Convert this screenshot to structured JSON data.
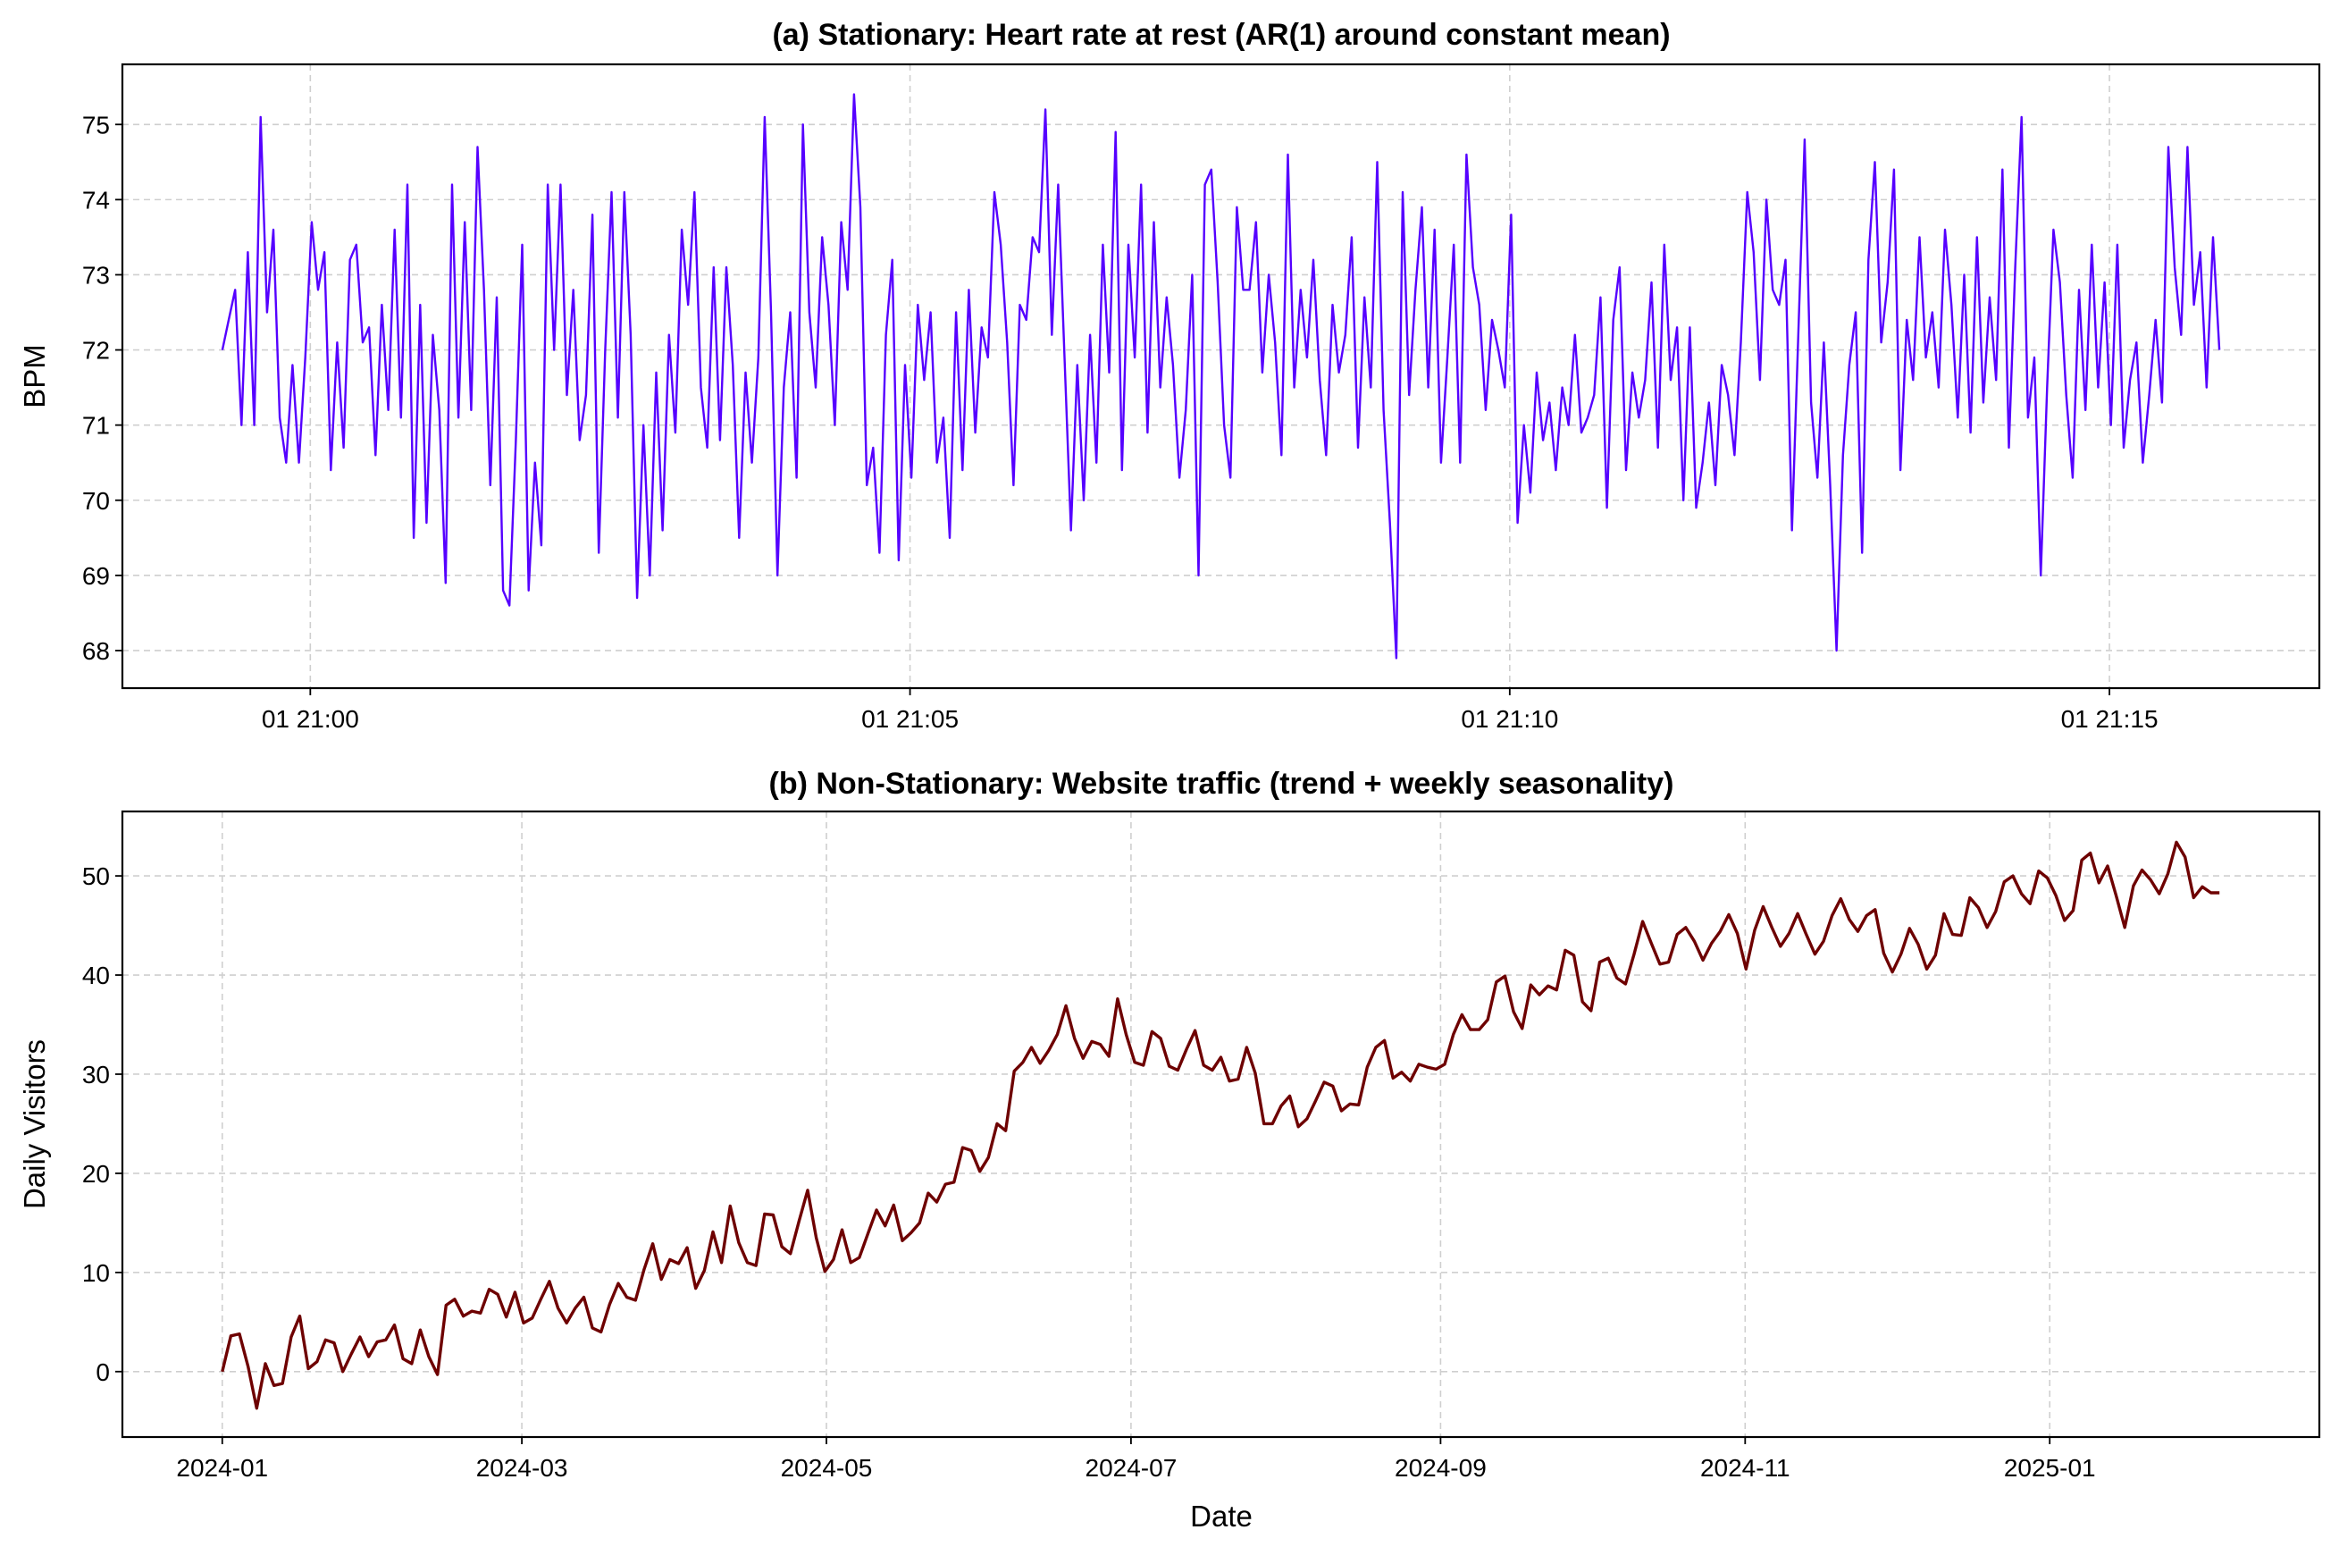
{
  "chart_data": [
    {
      "type": "line",
      "title": "(a) Stationary: Heart rate at rest (AR(1) around constant mean)",
      "xlabel": "",
      "ylabel": "BPM",
      "x_unit": "seconds since 20:59:16",
      "x_start": 0,
      "x_end": 999,
      "xlim": [
        -50,
        1049
      ],
      "ylim": [
        67.5,
        75.8
      ],
      "grid": true,
      "color": "#5500ff",
      "x_ticks": [
        {
          "value": 44,
          "label": "01 21:00"
        },
        {
          "value": 344,
          "label": "01 21:05"
        },
        {
          "value": 644,
          "label": "01 21:10"
        },
        {
          "value": 944,
          "label": "01 21:15"
        }
      ],
      "y_ticks": [
        {
          "value": 68,
          "label": "68"
        },
        {
          "value": 69,
          "label": "69"
        },
        {
          "value": 70,
          "label": "70"
        },
        {
          "value": 71,
          "label": "71"
        },
        {
          "value": 72,
          "label": "72"
        },
        {
          "value": 73,
          "label": "73"
        },
        {
          "value": 74,
          "label": "74"
        },
        {
          "value": 75,
          "label": "75"
        }
      ],
      "values": [
        72,
        72.4,
        72.8,
        71,
        73.3,
        71,
        75.1,
        72.5,
        73.6,
        71.1,
        70.5,
        71.8,
        70.5,
        71.9,
        73.7,
        72.8,
        73.3,
        70.4,
        72.1,
        70.7,
        73.2,
        73.4,
        72.1,
        72.3,
        70.6,
        72.6,
        71.2,
        73.6,
        71.1,
        74.2,
        69.5,
        72.6,
        69.7,
        72.2,
        71.2,
        68.9,
        74.2,
        71.1,
        73.7,
        71.2,
        74.7,
        72.8,
        70.2,
        72.7,
        68.8,
        68.6,
        70.8,
        73.4,
        68.8,
        70.5,
        69.4,
        74.2,
        72,
        74.2,
        71.4,
        72.8,
        70.8,
        71.4,
        73.8,
        69.3,
        72,
        74.1,
        71.1,
        74.1,
        72.2,
        68.7,
        71,
        69,
        71.7,
        69.6,
        72.2,
        70.9,
        73.6,
        72.6,
        74.1,
        71.5,
        70.7,
        73.1,
        70.8,
        73.1,
        71.8,
        69.5,
        71.7,
        70.5,
        71.9,
        75.1,
        72.5,
        69,
        71.5,
        72.5,
        70.3,
        75,
        72.5,
        71.5,
        73.5,
        72.6,
        71,
        73.7,
        72.8,
        75.4,
        73.9,
        70.2,
        70.7,
        69.3,
        72.2,
        73.2,
        69.2,
        71.8,
        70.3,
        72.6,
        71.6,
        72.5,
        70.5,
        71.1,
        69.5,
        72.5,
        70.4,
        72.8,
        70.9,
        72.3,
        71.9,
        74.1,
        73.4,
        72.1,
        70.2,
        72.6,
        72.4,
        73.5,
        73.3,
        75.2,
        72.2,
        74.2,
        71.9,
        69.6,
        71.8,
        70,
        72.2,
        70.5,
        73.4,
        71.7,
        74.9,
        70.4,
        73.4,
        71.9,
        74.2,
        70.9,
        73.7,
        71.5,
        72.7,
        71.8,
        70.3,
        71.2,
        73,
        69,
        74.2,
        74.4,
        72.9,
        71,
        70.3,
        73.9,
        72.8,
        72.8,
        73.7,
        71.7,
        73,
        72.1,
        70.6,
        74.6,
        71.5,
        72.8,
        71.9,
        73.2,
        71.6,
        70.6,
        72.6,
        71.7,
        72.2,
        73.5,
        70.7,
        72.7,
        71.5,
        74.5,
        71.2,
        69.7,
        67.9,
        74.1,
        71.4,
        72.8,
        73.9,
        71.5,
        73.6,
        70.5,
        71.9,
        73.4,
        70.5,
        74.6,
        73.1,
        72.6,
        71.2,
        72.4,
        72,
        71.5,
        73.8,
        69.7,
        71,
        70.1,
        71.7,
        70.8,
        71.3,
        70.4,
        71.5,
        71,
        72.2,
        70.9,
        71.1,
        71.4,
        72.7,
        69.9,
        72.4,
        73.1,
        70.4,
        71.7,
        71.1,
        71.6,
        72.9,
        70.7,
        73.4,
        71.6,
        72.3,
        70,
        72.3,
        69.9,
        70.5,
        71.3,
        70.2,
        71.8,
        71.4,
        70.6,
        72.1,
        74.1,
        73.3,
        71.6,
        74,
        72.8,
        72.6,
        73.2,
        69.6,
        72.2,
        74.8,
        71.3,
        70.3,
        72.1,
        70.2,
        68,
        70.6,
        71.8,
        72.5,
        69.3,
        73.2,
        74.5,
        72.1,
        72.9,
        74.4,
        70.4,
        72.4,
        71.6,
        73.5,
        71.9,
        72.5,
        71.5,
        73.6,
        72.6,
        71.1,
        73,
        70.9,
        73.5,
        71.3,
        72.7,
        71.6,
        74.4,
        70.7,
        73.1,
        75.1,
        71.1,
        71.9,
        69,
        71.5,
        73.6,
        72.9,
        71.4,
        70.3,
        72.8,
        71.2,
        73.4,
        71.5,
        72.9,
        71,
        73.4,
        70.7,
        71.6,
        72.1,
        70.5,
        71.4,
        72.4,
        71.3,
        74.7,
        73.1,
        72.2,
        74.7,
        72.6,
        73.3,
        71.5,
        73.5,
        72
      ]
    },
    {
      "type": "line",
      "title": "(b) Non-Stationary: Website traffic (trend + weekly seasonality)",
      "xlabel": "Date",
      "ylabel": "Daily Visitors",
      "x_unit": "days since 2024-01-01",
      "x_start": 0,
      "x_end": 400,
      "xlim": [
        -20,
        420
      ],
      "ylim": [
        -6.6,
        56.5
      ],
      "grid": true,
      "color": "#6e0000",
      "x_ticks": [
        {
          "value": 0,
          "label": "2024-01"
        },
        {
          "value": 60,
          "label": "2024-03"
        },
        {
          "value": 121,
          "label": "2024-05"
        },
        {
          "value": 182,
          "label": "2024-07"
        },
        {
          "value": 244,
          "label": "2024-09"
        },
        {
          "value": 305,
          "label": "2024-11"
        },
        {
          "value": 366,
          "label": "2025-01"
        }
      ],
      "y_ticks": [
        {
          "value": 0,
          "label": "0"
        },
        {
          "value": 10,
          "label": "10"
        },
        {
          "value": 20,
          "label": "20"
        },
        {
          "value": 30,
          "label": "30"
        },
        {
          "value": 40,
          "label": "40"
        },
        {
          "value": 50,
          "label": "50"
        }
      ],
      "values": [
        0,
        3.6,
        3.8,
        0.5,
        -3.7,
        0.8,
        -1.4,
        -1.2,
        3.5,
        5.6,
        0.3,
        1,
        3.2,
        2.9,
        0,
        1.8,
        3.5,
        1.5,
        3,
        3.2,
        4.7,
        1.3,
        0.8,
        4.2,
        1.5,
        -0.3,
        6.7,
        7.3,
        5.6,
        6.1,
        5.9,
        8.3,
        7.8,
        5.5,
        8,
        4.9,
        5.4,
        7.3,
        9.1,
        6.4,
        4.9,
        6.4,
        7.5,
        4.4,
        4,
        6.8,
        8.9,
        7.5,
        7.2,
        10.3,
        12.9,
        9.3,
        11.3,
        10.9,
        12.5,
        8.4,
        10.2,
        14.1,
        11,
        16.7,
        13,
        11,
        10.7,
        15.9,
        15.8,
        12.6,
        11.9,
        15.2,
        18.3,
        13.5,
        10.1,
        11.3,
        14.3,
        11,
        11.5,
        13.9,
        16.3,
        14.7,
        16.8,
        13.2,
        14,
        15,
        18,
        17.1,
        18.9,
        19.1,
        22.6,
        22.3,
        20.2,
        21.6,
        25,
        24.3,
        30.3,
        31.2,
        32.7,
        31.1,
        32.4,
        34,
        36.9,
        33.6,
        31.6,
        33.3,
        33,
        31.8,
        37.6,
        34,
        31.2,
        30.9,
        34.3,
        33.6,
        30.8,
        30.4,
        32.5,
        34.4,
        30.9,
        30.4,
        31.7,
        29.3,
        29.5,
        32.7,
        30.1,
        25,
        25,
        26.8,
        27.8,
        24.7,
        25.5,
        27.3,
        29.2,
        28.8,
        26.3,
        27,
        26.9,
        30.7,
        32.7,
        33.4,
        29.6,
        30.2,
        29.3,
        31,
        30.7,
        30.5,
        31,
        34,
        36,
        34.5,
        34.5,
        35.5,
        39.3,
        39.9,
        36.3,
        34.6,
        39,
        38,
        38.9,
        38.5,
        42.5,
        42,
        37.3,
        36.4,
        41.3,
        41.7,
        39.7,
        39.1,
        42.1,
        45.4,
        43.2,
        41.1,
        41.3,
        44.1,
        44.8,
        43.4,
        41.5,
        43.2,
        44.4,
        46.1,
        44.2,
        40.6,
        44.5,
        46.9,
        44.8,
        42.9,
        44.2,
        46.2,
        44.1,
        42.1,
        43.4,
        46,
        47.7,
        45.6,
        44.4,
        46,
        46.6,
        42.2,
        40.3,
        42.1,
        44.7,
        43.1,
        40.6,
        42,
        46.2,
        44.1,
        44,
        47.8,
        46.8,
        44.8,
        46.4,
        49.4,
        50,
        48.2,
        47.2,
        50.5,
        49.8,
        48,
        45.5,
        46.5,
        51.6,
        52.3,
        49.3,
        51,
        48,
        44.8,
        49,
        50.6,
        49.6,
        48.2,
        50.2,
        53.4,
        51.9,
        47.8,
        48.9,
        48.3,
        48.3
      ]
    }
  ]
}
